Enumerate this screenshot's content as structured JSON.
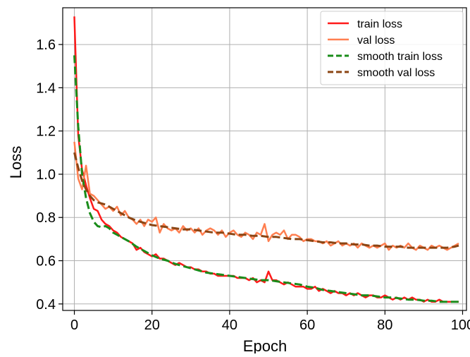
{
  "chart_data": {
    "type": "line",
    "title": "",
    "xlabel": "Epoch",
    "ylabel": "Loss",
    "xlim": [
      -3,
      101
    ],
    "ylim": [
      0.37,
      1.77
    ],
    "xticks": [
      0,
      20,
      40,
      60,
      80,
      100
    ],
    "yticks": [
      0.4,
      0.6,
      0.8,
      1.0,
      1.2,
      1.4,
      1.6
    ],
    "xtick_labels": [
      "0",
      "20",
      "40",
      "60",
      "80",
      "100"
    ],
    "ytick_labels": [
      "0.4",
      "0.6",
      "0.8",
      "1.0",
      "1.2",
      "1.4",
      "1.6"
    ],
    "grid": true,
    "legend_position": "top-right",
    "series": [
      {
        "name": "train loss",
        "color": "#ff1a1a",
        "style": "solid",
        "x": [
          0,
          1,
          2,
          3,
          4,
          5,
          6,
          7,
          8,
          9,
          10,
          11,
          12,
          13,
          14,
          15,
          16,
          17,
          18,
          19,
          20,
          21,
          22,
          23,
          24,
          25,
          26,
          27,
          28,
          29,
          30,
          31,
          32,
          33,
          34,
          35,
          36,
          37,
          38,
          39,
          40,
          41,
          42,
          43,
          44,
          45,
          46,
          47,
          48,
          49,
          50,
          51,
          52,
          53,
          54,
          55,
          56,
          57,
          58,
          59,
          60,
          61,
          62,
          63,
          64,
          65,
          66,
          67,
          68,
          69,
          70,
          71,
          72,
          73,
          74,
          75,
          76,
          77,
          78,
          79,
          80,
          81,
          82,
          83,
          84,
          85,
          86,
          87,
          88,
          89,
          90,
          91,
          92,
          93,
          94,
          95,
          96,
          97,
          98,
          99
        ],
        "y": [
          1.73,
          1.18,
          1.02,
          0.95,
          0.89,
          0.84,
          0.83,
          0.79,
          0.77,
          0.76,
          0.74,
          0.73,
          0.71,
          0.7,
          0.69,
          0.68,
          0.65,
          0.66,
          0.64,
          0.63,
          0.62,
          0.63,
          0.61,
          0.61,
          0.6,
          0.59,
          0.58,
          0.59,
          0.58,
          0.57,
          0.57,
          0.56,
          0.56,
          0.55,
          0.55,
          0.54,
          0.54,
          0.53,
          0.53,
          0.53,
          0.53,
          0.53,
          0.52,
          0.52,
          0.52,
          0.51,
          0.52,
          0.5,
          0.51,
          0.5,
          0.55,
          0.51,
          0.51,
          0.5,
          0.49,
          0.5,
          0.49,
          0.48,
          0.48,
          0.48,
          0.47,
          0.47,
          0.48,
          0.46,
          0.47,
          0.46,
          0.45,
          0.46,
          0.45,
          0.45,
          0.44,
          0.45,
          0.44,
          0.45,
          0.44,
          0.43,
          0.44,
          0.44,
          0.43,
          0.43,
          0.44,
          0.43,
          0.42,
          0.43,
          0.42,
          0.43,
          0.42,
          0.43,
          0.42,
          0.42,
          0.41,
          0.42,
          0.41,
          0.41,
          0.42,
          0.41,
          0.41,
          0.41,
          0.41,
          0.41
        ]
      },
      {
        "name": "val loss",
        "color": "#ff7f50",
        "style": "solid",
        "x": [
          0,
          1,
          2,
          3,
          4,
          5,
          6,
          7,
          8,
          9,
          10,
          11,
          12,
          13,
          14,
          15,
          16,
          17,
          18,
          19,
          20,
          21,
          22,
          23,
          24,
          25,
          26,
          27,
          28,
          29,
          30,
          31,
          32,
          33,
          34,
          35,
          36,
          37,
          38,
          39,
          40,
          41,
          42,
          43,
          44,
          45,
          46,
          47,
          48,
          49,
          50,
          51,
          52,
          53,
          54,
          55,
          56,
          57,
          58,
          59,
          60,
          61,
          62,
          63,
          64,
          65,
          66,
          67,
          68,
          69,
          70,
          71,
          72,
          73,
          74,
          75,
          76,
          77,
          78,
          79,
          80,
          81,
          82,
          83,
          84,
          85,
          86,
          87,
          88,
          89,
          90,
          91,
          92,
          93,
          94,
          95,
          96,
          97,
          98,
          99
        ],
        "y": [
          1.15,
          0.98,
          0.93,
          1.04,
          0.91,
          0.9,
          0.88,
          0.86,
          0.84,
          0.85,
          0.83,
          0.85,
          0.81,
          0.83,
          0.8,
          0.79,
          0.77,
          0.79,
          0.76,
          0.79,
          0.78,
          0.8,
          0.73,
          0.77,
          0.75,
          0.74,
          0.75,
          0.73,
          0.76,
          0.74,
          0.75,
          0.73,
          0.75,
          0.72,
          0.74,
          0.75,
          0.74,
          0.72,
          0.74,
          0.71,
          0.73,
          0.74,
          0.72,
          0.71,
          0.73,
          0.72,
          0.7,
          0.73,
          0.72,
          0.77,
          0.69,
          0.72,
          0.73,
          0.72,
          0.74,
          0.7,
          0.72,
          0.72,
          0.71,
          0.69,
          0.7,
          0.7,
          0.69,
          0.69,
          0.68,
          0.69,
          0.67,
          0.68,
          0.69,
          0.67,
          0.68,
          0.67,
          0.68,
          0.66,
          0.68,
          0.67,
          0.66,
          0.67,
          0.66,
          0.67,
          0.68,
          0.65,
          0.67,
          0.66,
          0.67,
          0.66,
          0.68,
          0.66,
          0.65,
          0.67,
          0.66,
          0.65,
          0.67,
          0.66,
          0.67,
          0.66,
          0.65,
          0.66,
          0.67,
          0.68
        ]
      },
      {
        "name": "smooth train loss",
        "color": "#1a8c1a",
        "style": "dashed",
        "x": [
          0,
          1,
          2,
          3,
          4,
          5,
          6,
          7,
          8,
          9,
          10,
          12,
          14,
          16,
          18,
          20,
          22,
          24,
          26,
          28,
          30,
          32,
          34,
          36,
          38,
          40,
          42,
          44,
          46,
          48,
          50,
          52,
          54,
          56,
          58,
          60,
          62,
          64,
          66,
          68,
          70,
          72,
          74,
          76,
          78,
          80,
          82,
          84,
          86,
          88,
          90,
          92,
          94,
          96,
          98,
          99
        ],
        "y": [
          1.55,
          1.22,
          1.0,
          0.89,
          0.82,
          0.78,
          0.76,
          0.755,
          0.76,
          0.75,
          0.73,
          0.71,
          0.69,
          0.665,
          0.645,
          0.625,
          0.61,
          0.6,
          0.585,
          0.575,
          0.565,
          0.555,
          0.545,
          0.54,
          0.535,
          0.53,
          0.525,
          0.52,
          0.515,
          0.51,
          0.51,
          0.505,
          0.5,
          0.495,
          0.49,
          0.48,
          0.475,
          0.465,
          0.46,
          0.455,
          0.45,
          0.445,
          0.44,
          0.44,
          0.435,
          0.43,
          0.43,
          0.425,
          0.42,
          0.42,
          0.415,
          0.415,
          0.41,
          0.41,
          0.41,
          0.41
        ]
      },
      {
        "name": "smooth val loss",
        "color": "#8b4513",
        "style": "dashed",
        "x": [
          0,
          1,
          2,
          3,
          4,
          5,
          6,
          8,
          10,
          12,
          14,
          16,
          18,
          20,
          22,
          24,
          26,
          28,
          30,
          32,
          34,
          36,
          38,
          40,
          42,
          44,
          46,
          48,
          50,
          52,
          54,
          56,
          58,
          60,
          62,
          64,
          66,
          68,
          70,
          72,
          74,
          76,
          78,
          80,
          82,
          84,
          86,
          88,
          90,
          92,
          94,
          96,
          98,
          99
        ],
        "y": [
          1.1,
          1.03,
          0.97,
          0.93,
          0.9,
          0.88,
          0.87,
          0.86,
          0.84,
          0.82,
          0.8,
          0.785,
          0.775,
          0.765,
          0.76,
          0.755,
          0.75,
          0.745,
          0.745,
          0.74,
          0.735,
          0.73,
          0.73,
          0.725,
          0.72,
          0.72,
          0.715,
          0.715,
          0.71,
          0.71,
          0.705,
          0.7,
          0.7,
          0.695,
          0.69,
          0.685,
          0.685,
          0.68,
          0.68,
          0.675,
          0.675,
          0.67,
          0.67,
          0.665,
          0.665,
          0.665,
          0.66,
          0.66,
          0.66,
          0.66,
          0.66,
          0.66,
          0.665,
          0.67
        ]
      }
    ]
  }
}
